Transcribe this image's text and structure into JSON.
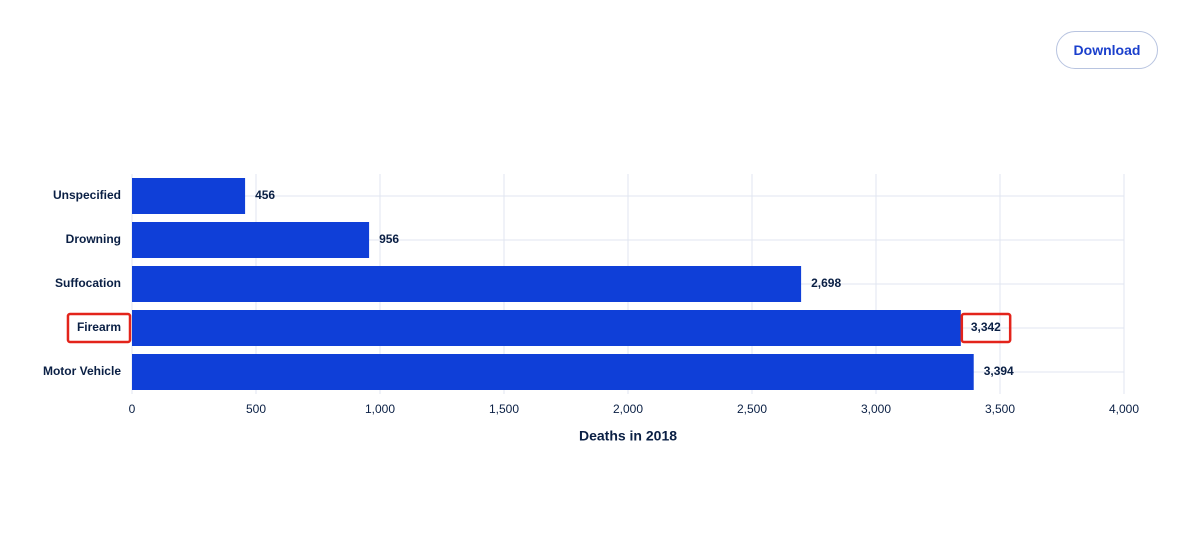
{
  "chart_data": {
    "type": "hbar",
    "x_label": "Deaths in 2018",
    "categories": [
      "Unspecified",
      "Drowning",
      "Suffocation",
      "Firearm",
      "Motor Vehicle"
    ],
    "values": [
      456,
      956,
      2698,
      3342,
      3394
    ],
    "value_labels": [
      "456",
      "956",
      "2,698",
      "3,342",
      "3,394"
    ],
    "color": "#0f3fd8",
    "xlim": [
      0,
      4000
    ],
    "xticks": [
      0,
      500,
      {
        "value": 1000,
        "label": "1,000"
      },
      {
        "value": 1500,
        "label": "1,500"
      },
      {
        "value": 2000,
        "label": "2,000"
      },
      {
        "value": 2500,
        "label": "2,500"
      },
      {
        "value": 3000,
        "label": "3,000"
      },
      {
        "value": 3500,
        "label": "3,500"
      },
      {
        "value": 4000,
        "label": "4,000"
      }
    ],
    "grid": true,
    "highlight_index": 3
  },
  "ui": {
    "download_button": "Download"
  }
}
